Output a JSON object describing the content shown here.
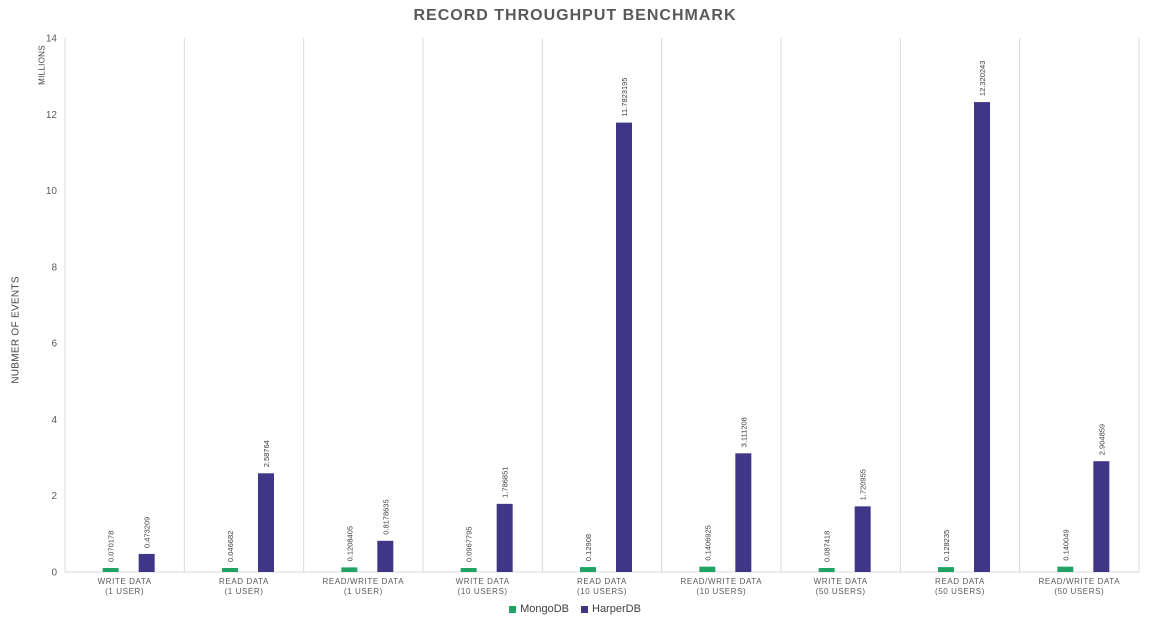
{
  "colors": {
    "mongodb": "#21a366",
    "harperdb": "#403687",
    "gridline": "#d9d9d9",
    "axis_text": "#595959",
    "label_text": "#404040"
  },
  "chart_data": {
    "type": "bar",
    "title": "RECORD THROUGHPUT BENCHMARK",
    "ylabel": "NUBMER OF EVENTS",
    "y_unit": "MILLIONS",
    "ylim": [
      0,
      14
    ],
    "yticks": [
      0,
      2,
      4,
      6,
      8,
      10,
      12,
      14
    ],
    "grid": "vertical category separators",
    "legend_position": "bottom",
    "categories": [
      {
        "line1": "WRITE DATA",
        "line2": "(1 USER)"
      },
      {
        "line1": "READ DATA",
        "line2": "(1 USER)"
      },
      {
        "line1": "READ/WRITE DATA",
        "line2": "(1 USER)"
      },
      {
        "line1": "WRITE DATA",
        "line2": "(10 USERS)"
      },
      {
        "line1": "READ DATA",
        "line2": "(10 USERS)"
      },
      {
        "line1": "READ/WRITE DATA",
        "line2": "(10 USERS)"
      },
      {
        "line1": "WRITE DATA",
        "line2": "(50 USERS)"
      },
      {
        "line1": "READ DATA",
        "line2": "(50 USERS)"
      },
      {
        "line1": "READ/WRITE DATA",
        "line2": "(50 USERS)"
      }
    ],
    "series": [
      {
        "name": "MongoDB",
        "color_key": "mongodb",
        "values": [
          0.070178,
          0.046682,
          0.1208405,
          0.0967795,
          0.12908,
          0.1406925,
          0.087418,
          0.128235,
          0.140049
        ],
        "labels": [
          "0.070178",
          "0.046682",
          "0.1208405",
          "0.0967795",
          "0.12908",
          "0.1406925",
          "0.087418",
          "0.128235",
          "0.140049"
        ]
      },
      {
        "name": "HarperDB",
        "color_key": "harperdb",
        "values": [
          0.473209,
          2.58764,
          0.8178635,
          1.786851,
          11.7823195,
          3.111208,
          1.720955,
          12.320243,
          2.904859
        ],
        "labels": [
          "0.473209",
          "2.58764",
          "0.8178635",
          "1.786851",
          "11.7823195",
          "3.111208",
          "1.720955",
          "12.320243",
          "2.904859"
        ]
      }
    ]
  }
}
